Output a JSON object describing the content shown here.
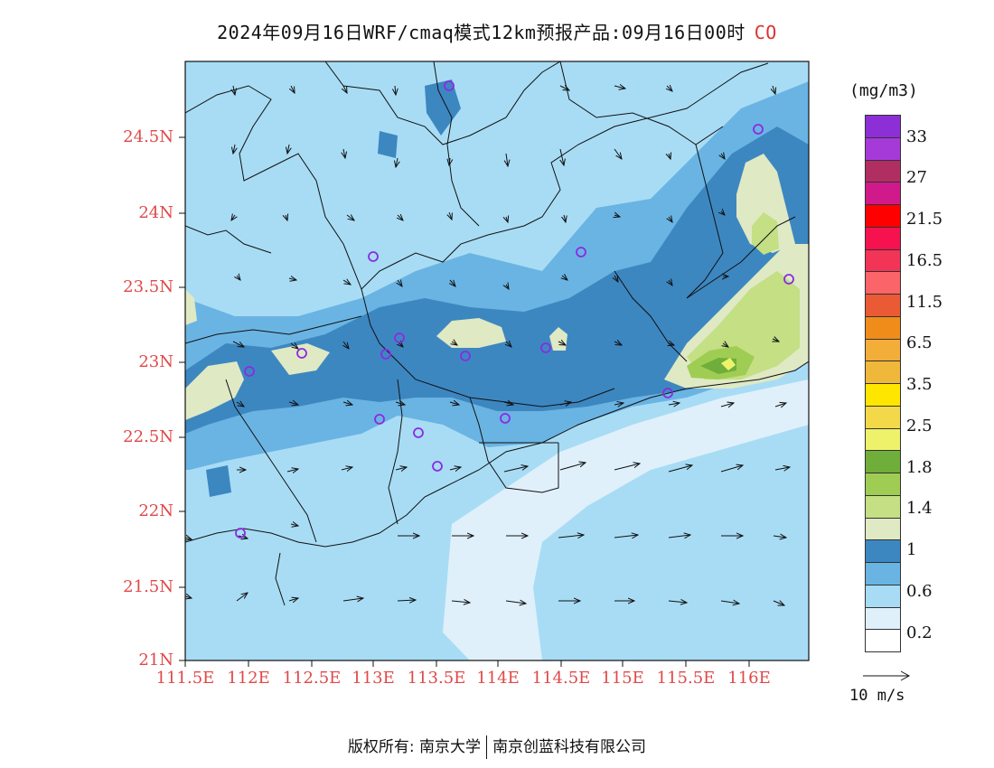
{
  "title": {
    "text": "2024年09月16日WRF/cmaq模式12km预报产品:09月16日00时",
    "species": "CO"
  },
  "map": {
    "lat_labels": [
      "24.5N",
      "24N",
      "23.5N",
      "23N",
      "22.5N",
      "22N",
      "21.5N",
      "21N"
    ],
    "lon_labels": [
      "111.5E",
      "112E",
      "112.5E",
      "113E",
      "113.5E",
      "114E",
      "114.5E",
      "115E",
      "115.5E",
      "116E"
    ],
    "colors": {
      "c_lightest": "#dff0fb",
      "c_light": "#a8dcf5",
      "c_mid": "#6ab4e3",
      "c_dark": "#3d87c1",
      "c_pale_green": "#dfe9c4",
      "c_green": "#c4df84",
      "c_green2": "#9fcd53",
      "c_green3": "#6fae3a",
      "c_yellow": "#f2f06d",
      "wind_arrow": "#111111",
      "station_marker": "#8a2be2",
      "coast_line": "#111111"
    }
  },
  "colorbar": {
    "unit": "(mg/m3)",
    "labels": [
      "33",
      "27",
      "21.5",
      "16.5",
      "11.5",
      "6.5",
      "3.5",
      "2.5",
      "1.8",
      "1.4",
      "1",
      "0.6",
      "0.2"
    ],
    "colors": [
      "#8c2fd6",
      "#a63ad8",
      "#b12e62",
      "#d01a8c",
      "#ff0000",
      "#f5124e",
      "#f23456",
      "#fb6468",
      "#ea5a34",
      "#f08c1a",
      "#f3ae3a",
      "#f0b83a",
      "#ffe600",
      "#f3d94a",
      "#eef26a",
      "#6fae3a",
      "#9fcd53",
      "#c4df84",
      "#dfe9c4",
      "#3d87c1",
      "#6ab4e3",
      "#a8dcf5",
      "#dff0fb",
      "#ffffff"
    ]
  },
  "legend": {
    "wind_reference": "10 m/s"
  },
  "footer": {
    "copyright_left": "版权所有: 南京大学",
    "copyright_right": "南京创蓝科技有限公司"
  }
}
